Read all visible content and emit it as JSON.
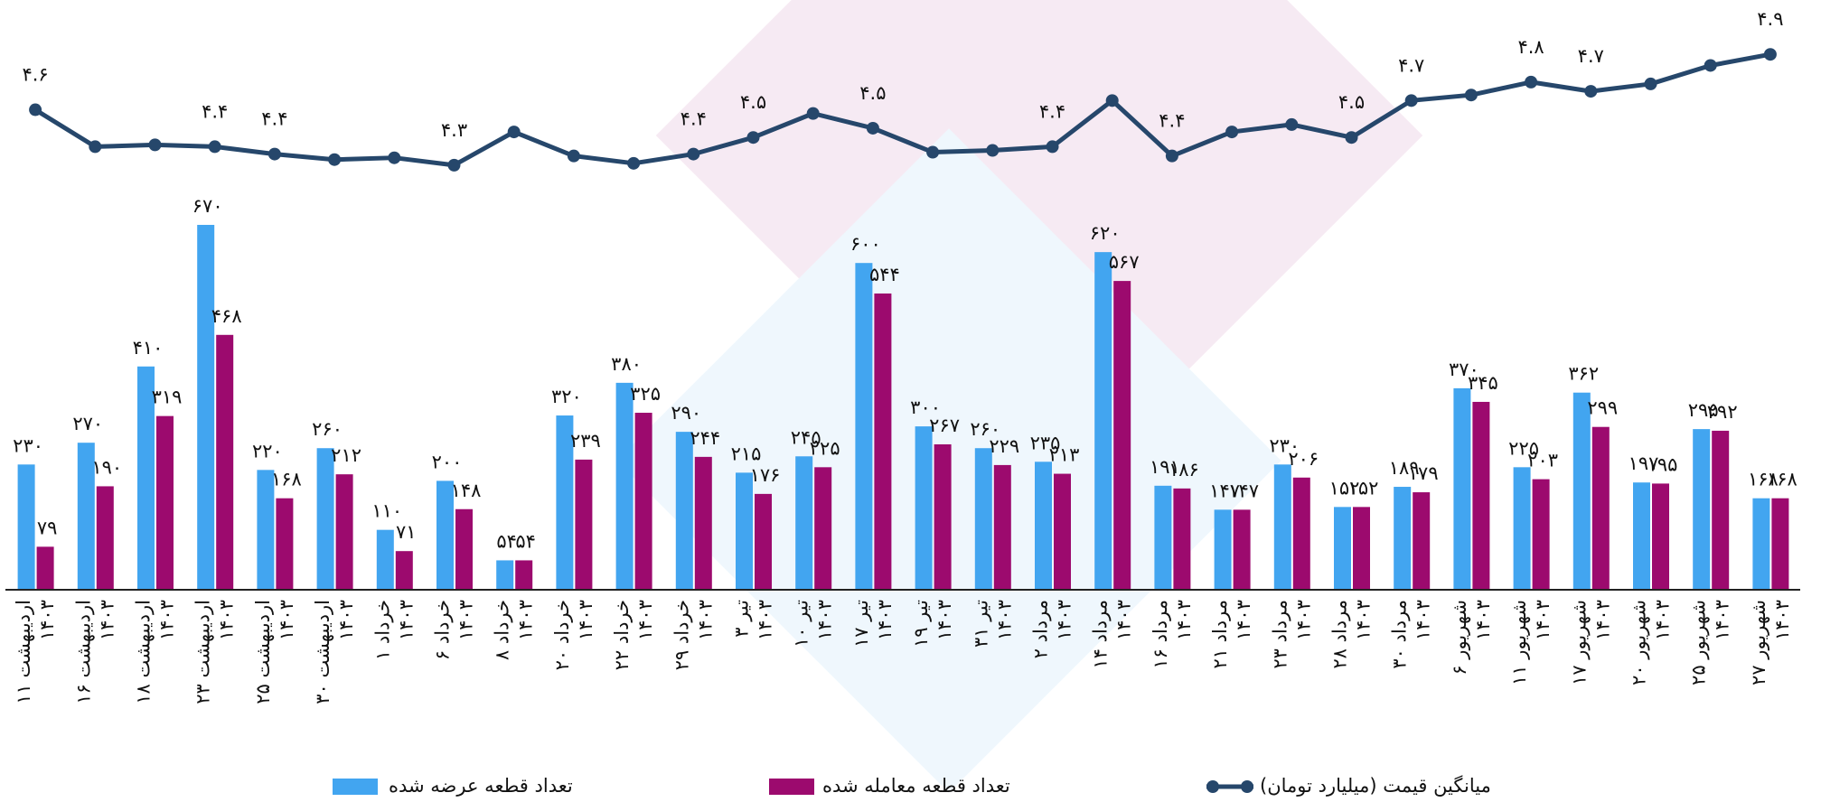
{
  "chart_data": {
    "type": "bar",
    "categories": [
      "۱۱ اردیبهشت ۱۴۰۳",
      "۱۶ اردیبهشت ۱۴۰۳",
      "۱۸ اردیبهشت ۱۴۰۳",
      "۲۳ اردیبهشت ۱۴۰۳",
      "۲۵ اردیبهشت ۱۴۰۳",
      "۳۰ اردیبهشت ۱۴۰۳",
      "۱ خرداد ۱۴۰۳",
      "۶ خرداد ۱۴۰۳",
      "۸ خرداد ۱۴۰۳",
      "۲۰ خرداد ۱۴۰۳",
      "۲۲ خرداد ۱۴۰۳",
      "۲۹ خرداد ۱۴۰۳",
      "۳ تیر ۱۴۰۳",
      "۱۰ تیر ۱۴۰۳",
      "۱۷ تیر ۱۴۰۳",
      "۱۹ تیر ۱۴۰۳",
      "۳۱ تیر ۱۴۰۳",
      "۲ مرداد ۱۴۰۳",
      "۱۴ مرداد ۱۴۰۳",
      "۱۶ مرداد ۱۴۰۳",
      "۲۱ مرداد ۱۴۰۳",
      "۲۳ مرداد ۱۴۰۳",
      "۲۸ مرداد ۱۴۰۳",
      "۳۰ مرداد ۱۴۰۳",
      "۶ شهریور ۱۴۰۳",
      "۱۱ شهریور ۱۴۰۳",
      "۱۷ شهریور ۱۴۰۳",
      "۲۰ شهریور ۱۴۰۳",
      "۲۵ شهریور ۱۴۰۳",
      "۲۷ شهریور ۱۴۰۳"
    ],
    "series": [
      {
        "name": "تعداد قطعه عرضه شده",
        "color": "#42a5f0",
        "values": [
          230,
          270,
          410,
          670,
          220,
          260,
          110,
          200,
          54,
          320,
          380,
          290,
          215,
          245,
          600,
          300,
          260,
          235,
          620,
          191,
          147,
          230,
          152,
          189,
          370,
          225,
          362,
          197,
          295,
          168
        ],
        "value_labels": [
          "۲۳۰",
          "۲۷۰",
          "۴۱۰",
          "۶۷۰",
          "۲۲۰",
          "۲۶۰",
          "۱۱۰",
          "۲۰۰",
          "۵۴",
          "۳۲۰",
          "۳۸۰",
          "۲۹۰",
          "۲۱۵",
          "۲۴۵",
          "۶۰۰",
          "۳۰۰",
          "۲۶۰",
          "۲۳۵",
          "۶۲۰",
          "۱۹۱",
          "۱۴۷",
          "۲۳۰",
          "۱۵۲",
          "۱۸۹",
          "۳۷۰",
          "۲۲۵",
          "۳۶۲",
          "۱۹۷",
          "۲۹۵",
          "۱۶۸"
        ]
      },
      {
        "name": "تعداد قطعه معامله شده",
        "color": "#9c0a6e",
        "values": [
          79,
          190,
          319,
          468,
          168,
          212,
          71,
          148,
          54,
          239,
          325,
          244,
          176,
          225,
          544,
          267,
          229,
          213,
          567,
          186,
          147,
          206,
          152,
          179,
          345,
          203,
          299,
          195,
          292,
          168
        ],
        "value_labels": [
          "۷۹",
          "۱۹۰",
          "۳۱۹",
          "۴۶۸",
          "۱۶۸",
          "۲۱۲",
          "۷۱",
          "۱۴۸",
          "۵۴",
          "۲۳۹",
          "۳۲۵",
          "۲۴۴",
          "۱۷۶",
          "۲۲۵",
          "۵۴۴",
          "۲۶۷",
          "۲۲۹",
          "۲۱۳",
          "۵۶۷",
          "۱۸۶",
          "۱۴۷",
          "۲۰۶",
          "۱۵۲",
          "۱۷۹",
          "۳۴۵",
          "۲۰۳",
          "۲۹۹",
          "۱۹۵",
          "۲۹۲",
          "۱۶۸"
        ]
      },
      {
        "name": "میانگین قیمت (میلیارد تومان)",
        "color": "#26476b",
        "axis": "y2",
        "values": [
          4.6,
          4.4,
          4.41,
          4.4,
          4.36,
          4.33,
          4.34,
          4.3,
          4.48,
          4.35,
          4.31,
          4.36,
          4.45,
          4.58,
          4.5,
          4.37,
          4.38,
          4.4,
          4.65,
          4.35,
          4.48,
          4.52,
          4.45,
          4.65,
          4.68,
          4.75,
          4.7,
          4.74,
          4.84,
          4.9
        ],
        "value_labels": [
          "۴.۶",
          null,
          null,
          "۴.۴",
          "۴.۴",
          null,
          null,
          "۴.۳",
          null,
          null,
          null,
          "۴.۴",
          "۴.۵",
          null,
          "۴.۵",
          null,
          null,
          "۴.۴",
          null,
          "۴.۴",
          null,
          null,
          "۴.۵",
          "۴.۷",
          null,
          "۴.۸",
          "۴.۷",
          null,
          null,
          "۴.۹"
        ]
      }
    ],
    "ylim": [
      0,
      1000
    ],
    "y2lim": [
      2,
      4.95
    ]
  }
}
